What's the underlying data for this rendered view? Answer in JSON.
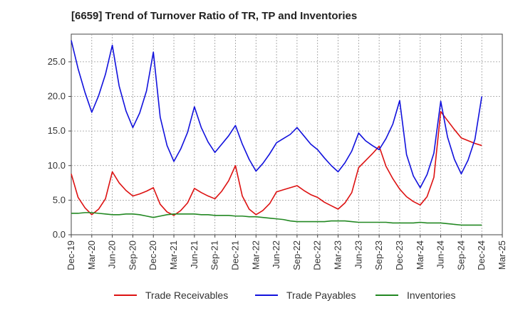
{
  "chart_data": {
    "type": "line",
    "title": "[6659]  Trend of Turnover Ratio of TR, TP and Inventories",
    "xlabel": "",
    "ylabel": "",
    "ylim": [
      0,
      29
    ],
    "yticks": [
      "0.0",
      "5.0",
      "10.0",
      "15.0",
      "20.0",
      "25.0"
    ],
    "ytick_values": [
      0,
      5,
      10,
      15,
      20,
      25
    ],
    "xticks": [
      "Dec-19",
      "Mar-20",
      "Jun-20",
      "Sep-20",
      "Dec-20",
      "Mar-21",
      "Jun-21",
      "Sep-21",
      "Dec-21",
      "Mar-22",
      "Jun-22",
      "Sep-22",
      "Dec-22",
      "Mar-23",
      "Jun-23",
      "Sep-23",
      "Dec-23",
      "Mar-24",
      "Jun-24",
      "Sep-24",
      "Dec-24",
      "Mar-25"
    ],
    "grid": true,
    "legend_position": "bottom",
    "x_months": [
      "Dec-19",
      "Jan-20",
      "Feb-20",
      "Mar-20",
      "Apr-20",
      "May-20",
      "Jun-20",
      "Jul-20",
      "Aug-20",
      "Sep-20",
      "Oct-20",
      "Nov-20",
      "Dec-20",
      "Jan-21",
      "Feb-21",
      "Mar-21",
      "Apr-21",
      "May-21",
      "Jun-21",
      "Jul-21",
      "Aug-21",
      "Sep-21",
      "Oct-21",
      "Nov-21",
      "Dec-21",
      "Jan-22",
      "Feb-22",
      "Mar-22",
      "Apr-22",
      "May-22",
      "Jun-22",
      "Jul-22",
      "Aug-22",
      "Sep-22",
      "Oct-22",
      "Nov-22",
      "Dec-22",
      "Jan-23",
      "Feb-23",
      "Mar-23",
      "Apr-23",
      "May-23",
      "Jun-23",
      "Jul-23",
      "Aug-23",
      "Sep-23",
      "Oct-23",
      "Nov-23",
      "Dec-23",
      "Jan-24",
      "Feb-24",
      "Mar-24",
      "Apr-24",
      "May-24",
      "Jun-24",
      "Jul-24",
      "Aug-24",
      "Sep-24",
      "Oct-24",
      "Nov-24",
      "Dec-24"
    ],
    "series": [
      {
        "name": "Trade Receivables",
        "color": "#dd1111",
        "values": [
          8.8,
          5.4,
          3.9,
          2.9,
          3.7,
          5.2,
          9.1,
          7.5,
          6.4,
          5.6,
          5.9,
          6.3,
          6.8,
          4.4,
          3.3,
          2.8,
          3.5,
          4.6,
          6.7,
          6.1,
          5.6,
          5.2,
          6.3,
          7.8,
          10.0,
          5.6,
          3.7,
          2.9,
          3.5,
          4.5,
          6.2,
          6.5,
          6.8,
          7.1,
          6.4,
          5.8,
          5.4,
          4.7,
          4.2,
          3.7,
          4.6,
          6.1,
          9.7,
          10.7,
          11.7,
          12.8,
          9.9,
          8.1,
          6.6,
          5.5,
          4.8,
          4.3,
          5.5,
          8.3,
          17.8,
          16.5,
          15.2,
          14.0,
          13.6,
          13.2,
          12.9
        ]
      },
      {
        "name": "Trade Payables",
        "color": "#1111dd",
        "values": [
          28.1,
          24.0,
          20.6,
          17.7,
          20.1,
          23.2,
          27.4,
          21.5,
          17.9,
          15.5,
          17.6,
          20.8,
          26.4,
          17.0,
          12.9,
          10.6,
          12.4,
          14.8,
          18.5,
          15.5,
          13.4,
          11.9,
          13.1,
          14.3,
          15.8,
          13.1,
          10.9,
          9.2,
          10.3,
          11.7,
          13.3,
          13.9,
          14.5,
          15.5,
          14.3,
          13.1,
          12.3,
          11.1,
          10.0,
          9.1,
          10.4,
          12.1,
          14.7,
          13.6,
          12.9,
          12.3,
          13.9,
          16.0,
          19.4,
          11.6,
          8.5,
          6.8,
          8.7,
          11.8,
          19.3,
          14.1,
          10.9,
          8.8,
          10.8,
          13.8,
          20.0
        ]
      },
      {
        "name": "Inventories",
        "color": "#228822",
        "values": [
          3.1,
          3.1,
          3.2,
          3.2,
          3.1,
          3.0,
          2.9,
          2.9,
          3.0,
          3.0,
          2.9,
          2.7,
          2.5,
          2.7,
          2.9,
          3.0,
          3.0,
          3.0,
          3.0,
          2.9,
          2.9,
          2.8,
          2.8,
          2.8,
          2.7,
          2.7,
          2.6,
          2.6,
          2.5,
          2.4,
          2.3,
          2.2,
          2.0,
          1.9,
          1.9,
          1.9,
          1.9,
          1.9,
          2.0,
          2.0,
          2.0,
          1.9,
          1.8,
          1.8,
          1.8,
          1.8,
          1.8,
          1.7,
          1.7,
          1.7,
          1.7,
          1.8,
          1.7,
          1.7,
          1.7,
          1.6,
          1.5,
          1.4,
          1.4,
          1.4,
          1.4
        ]
      }
    ]
  }
}
